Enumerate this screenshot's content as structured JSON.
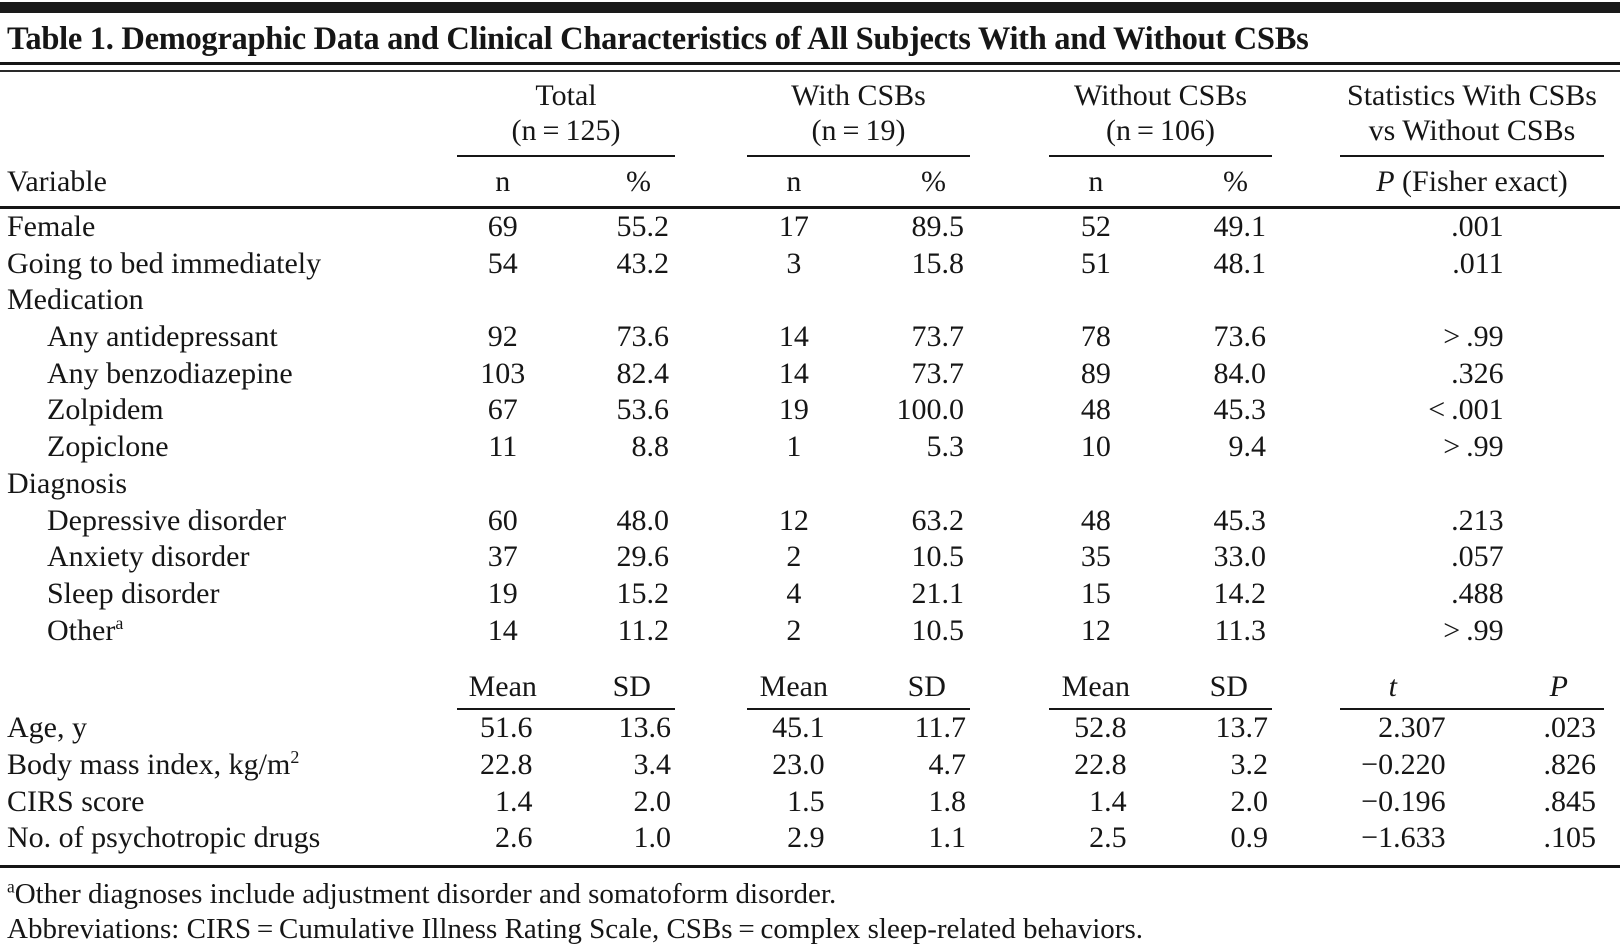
{
  "table": {
    "title": "Table 1. Demographic Data and Clinical Characteristics of All Subjects With and Without CSBs",
    "groups": [
      {
        "label": "Total",
        "sub": "(n = 125)"
      },
      {
        "label": "With CSBs",
        "sub": "(n = 19)"
      },
      {
        "label": "Without CSBs",
        "sub": "(n = 106)"
      },
      {
        "label": "Statistics With CSBs",
        "sub": "vs Without CSBs"
      }
    ],
    "headers": {
      "variable": "Variable",
      "n": "n",
      "pct": "%",
      "p_italic": "P",
      "p_rest": " (Fisher exact)",
      "mean": "Mean",
      "sd": "SD",
      "t": "t",
      "p2": "P"
    },
    "count_rows": [
      {
        "label": "Female",
        "sup": "",
        "indent": false,
        "section": false,
        "cells": [
          "69",
          "55.2",
          "17",
          "89.5",
          "52",
          "49.1"
        ],
        "p": ".001"
      },
      {
        "label": "Going to bed immediately",
        "sup": "",
        "indent": false,
        "section": false,
        "cells": [
          "54",
          "43.2",
          "3",
          "15.8",
          "51",
          "48.1"
        ],
        "p": ".011"
      },
      {
        "label": "Medication",
        "sup": "",
        "indent": false,
        "section": true,
        "cells": [
          "",
          "",
          "",
          "",
          "",
          ""
        ],
        "p": ""
      },
      {
        "label": "Any antidepressant",
        "sup": "",
        "indent": true,
        "section": false,
        "cells": [
          "92",
          "73.6",
          "14",
          "73.7",
          "78",
          "73.6"
        ],
        "p": "> .99"
      },
      {
        "label": "Any benzodiazepine",
        "sup": "",
        "indent": true,
        "section": false,
        "cells": [
          "103",
          "82.4",
          "14",
          "73.7",
          "89",
          "84.0"
        ],
        "p": ".326"
      },
      {
        "label": "Zolpidem",
        "sup": "",
        "indent": true,
        "section": false,
        "cells": [
          "67",
          "53.6",
          "19",
          "100.0",
          "48",
          "45.3"
        ],
        "p": "< .001"
      },
      {
        "label": "Zopiclone",
        "sup": "",
        "indent": true,
        "section": false,
        "cells": [
          "11",
          "8.8",
          "1",
          "5.3",
          "10",
          "9.4"
        ],
        "p": "> .99"
      },
      {
        "label": "Diagnosis",
        "sup": "",
        "indent": false,
        "section": true,
        "cells": [
          "",
          "",
          "",
          "",
          "",
          ""
        ],
        "p": ""
      },
      {
        "label": "Depressive disorder",
        "sup": "",
        "indent": true,
        "section": false,
        "cells": [
          "60",
          "48.0",
          "12",
          "63.2",
          "48",
          "45.3"
        ],
        "p": ".213"
      },
      {
        "label": "Anxiety disorder",
        "sup": "",
        "indent": true,
        "section": false,
        "cells": [
          "37",
          "29.6",
          "2",
          "10.5",
          "35",
          "33.0"
        ],
        "p": ".057"
      },
      {
        "label": "Sleep disorder",
        "sup": "",
        "indent": true,
        "section": false,
        "cells": [
          "19",
          "15.2",
          "4",
          "21.1",
          "15",
          "14.2"
        ],
        "p": ".488"
      },
      {
        "label": "Other",
        "sup": "a",
        "indent": true,
        "section": false,
        "cells": [
          "14",
          "11.2",
          "2",
          "10.5",
          "12",
          "11.3"
        ],
        "p": "> .99"
      }
    ],
    "mean_rows": [
      {
        "label": "Age, y",
        "sup": "",
        "cells": [
          "51.6",
          "13.6",
          "45.1",
          "11.7",
          "52.8",
          "13.7"
        ],
        "t": "2.307",
        "p": ".023"
      },
      {
        "label": "Body mass index, kg/m",
        "sup": "2",
        "cells": [
          "22.8",
          "3.4",
          "23.0",
          "4.7",
          "22.8",
          "3.2"
        ],
        "t": "−0.220",
        "p": ".826"
      },
      {
        "label": "CIRS score",
        "sup": "",
        "cells": [
          "1.4",
          "2.0",
          "1.5",
          "1.8",
          "1.4",
          "2.0"
        ],
        "t": "−0.196",
        "p": ".845"
      },
      {
        "label": "No. of psychotropic drugs",
        "sup": "",
        "cells": [
          "2.6",
          "1.0",
          "2.9",
          "1.1",
          "2.5",
          "0.9"
        ],
        "t": "−1.633",
        "p": ".105"
      }
    ],
    "footnotes": [
      {
        "sup": "a",
        "text": "Other diagnoses include adjustment disorder and somatoform disorder."
      },
      {
        "sup": "",
        "text": "Abbreviations: CIRS = Cumulative Illness Rating Scale, CSBs = complex sleep-related behaviors."
      }
    ]
  }
}
